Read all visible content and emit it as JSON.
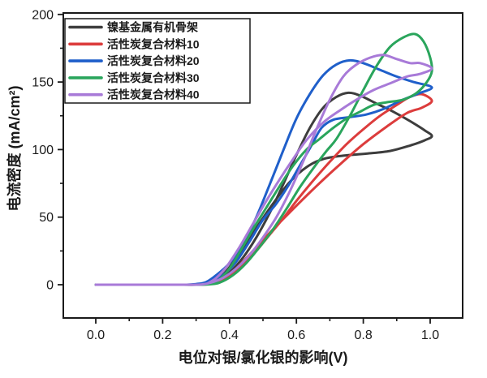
{
  "chart_data": {
    "type": "line",
    "title": "",
    "xlabel": "电位对银/氯化银的影响(V)",
    "ylabel": "电流密度 (mA/cm²)",
    "xlim": [
      -0.1,
      1.1
    ],
    "ylim": [
      -24,
      201
    ],
    "grid": false,
    "legend_position": "top-left",
    "x_ticks": [
      0.0,
      0.2,
      0.4,
      0.6,
      0.8,
      1.0
    ],
    "x_tick_labels": [
      "0.0",
      "0.2",
      "0.4",
      "0.6",
      "0.8",
      "1.0"
    ],
    "x_minor_ticks": [
      0.1,
      0.3,
      0.5,
      0.7,
      0.9
    ],
    "y_ticks": [
      0,
      50,
      100,
      150,
      200
    ],
    "y_tick_labels": [
      "0",
      "50",
      "100",
      "150",
      "200"
    ],
    "y_minor_ticks": [
      25,
      75,
      125,
      175
    ],
    "axis_color": "#1a1a1a",
    "series": [
      {
        "name": "镍基金属有机骨架",
        "color": "#3d3d3d",
        "peak": {
          "x": 0.755,
          "y": 142
        },
        "points": [
          [
            0.0,
            0
          ],
          [
            0.08,
            0
          ],
          [
            0.16,
            0
          ],
          [
            0.24,
            0
          ],
          [
            0.3,
            0
          ],
          [
            0.33,
            0.6
          ],
          [
            0.36,
            2.5
          ],
          [
            0.4,
            9
          ],
          [
            0.44,
            20
          ],
          [
            0.48,
            35
          ],
          [
            0.52,
            53
          ],
          [
            0.56,
            74
          ],
          [
            0.6,
            96
          ],
          [
            0.64,
            116
          ],
          [
            0.68,
            131
          ],
          [
            0.72,
            139
          ],
          [
            0.755,
            142
          ],
          [
            0.79,
            140
          ],
          [
            0.84,
            134
          ],
          [
            0.89,
            128
          ],
          [
            0.94,
            121
          ],
          [
            0.985,
            114
          ],
          [
            1.005,
            110
          ],
          [
            0.985,
            107
          ],
          [
            0.94,
            103
          ],
          [
            0.88,
            99
          ],
          [
            0.81,
            97
          ],
          [
            0.74,
            95.5
          ],
          [
            0.68,
            93
          ],
          [
            0.63,
            87
          ],
          [
            0.58,
            76
          ],
          [
            0.53,
            60
          ],
          [
            0.48,
            42
          ],
          [
            0.44,
            27
          ],
          [
            0.4,
            13
          ],
          [
            0.37,
            5
          ],
          [
            0.345,
            1
          ]
        ]
      },
      {
        "name": "活性炭复合材料10",
        "color": "#dc3c3c",
        "peak": {
          "x": 0.975,
          "y": 141
        },
        "points": [
          [
            0.0,
            0
          ],
          [
            0.1,
            0
          ],
          [
            0.2,
            0
          ],
          [
            0.28,
            0
          ],
          [
            0.32,
            0.2
          ],
          [
            0.36,
            1.5
          ],
          [
            0.4,
            7
          ],
          [
            0.44,
            15
          ],
          [
            0.48,
            25
          ],
          [
            0.52,
            37
          ],
          [
            0.56,
            49
          ],
          [
            0.6,
            62
          ],
          [
            0.65,
            77
          ],
          [
            0.7,
            91
          ],
          [
            0.75,
            104
          ],
          [
            0.8,
            115
          ],
          [
            0.85,
            125
          ],
          [
            0.9,
            133
          ],
          [
            0.94,
            139
          ],
          [
            0.975,
            141
          ],
          [
            1.005,
            136
          ],
          [
            0.975,
            131
          ],
          [
            0.93,
            127
          ],
          [
            0.87,
            117
          ],
          [
            0.8,
            104
          ],
          [
            0.73,
            89
          ],
          [
            0.66,
            73
          ],
          [
            0.59,
            56
          ],
          [
            0.53,
            41
          ],
          [
            0.47,
            25
          ],
          [
            0.42,
            12
          ],
          [
            0.38,
            4
          ],
          [
            0.35,
            0.8
          ]
        ]
      },
      {
        "name": "活性炭复合材料20",
        "color": "#1f5fca",
        "peak": {
          "x": 0.76,
          "y": 166
        },
        "points": [
          [
            0.0,
            0
          ],
          [
            0.1,
            0
          ],
          [
            0.2,
            0
          ],
          [
            0.26,
            0
          ],
          [
            0.3,
            0.5
          ],
          [
            0.33,
            2
          ],
          [
            0.36,
            7
          ],
          [
            0.4,
            16
          ],
          [
            0.44,
            30
          ],
          [
            0.48,
            50
          ],
          [
            0.52,
            74
          ],
          [
            0.56,
            99
          ],
          [
            0.6,
            123
          ],
          [
            0.64,
            141
          ],
          [
            0.68,
            155
          ],
          [
            0.72,
            163
          ],
          [
            0.76,
            166
          ],
          [
            0.8,
            164
          ],
          [
            0.85,
            159
          ],
          [
            0.9,
            154
          ],
          [
            0.95,
            150
          ],
          [
            1.005,
            146
          ],
          [
            0.96,
            141
          ],
          [
            0.91,
            136
          ],
          [
            0.86,
            130
          ],
          [
            0.81,
            126
          ],
          [
            0.76,
            124
          ],
          [
            0.71,
            122
          ],
          [
            0.675,
            116
          ],
          [
            0.645,
            103
          ],
          [
            0.61,
            88
          ],
          [
            0.575,
            73
          ],
          [
            0.54,
            60
          ],
          [
            0.5,
            48
          ],
          [
            0.46,
            32
          ],
          [
            0.42,
            17
          ],
          [
            0.38,
            7
          ],
          [
            0.34,
            1.5
          ]
        ]
      },
      {
        "name": "活性炭复合材料30",
        "color": "#2aa55c",
        "peak": {
          "x": 0.955,
          "y": 185.5
        },
        "points": [
          [
            0.0,
            0
          ],
          [
            0.1,
            0
          ],
          [
            0.2,
            0
          ],
          [
            0.3,
            0
          ],
          [
            0.34,
            0.3
          ],
          [
            0.37,
            1.5
          ],
          [
            0.41,
            7
          ],
          [
            0.45,
            16
          ],
          [
            0.49,
            28
          ],
          [
            0.53,
            41
          ],
          [
            0.57,
            56
          ],
          [
            0.61,
            72
          ],
          [
            0.65,
            86
          ],
          [
            0.69,
            99
          ],
          [
            0.72,
            108
          ],
          [
            0.76,
            125
          ],
          [
            0.8,
            144
          ],
          [
            0.84,
            162
          ],
          [
            0.88,
            176
          ],
          [
            0.92,
            183
          ],
          [
            0.955,
            185.5
          ],
          [
            0.98,
            180
          ],
          [
            1.0,
            168
          ],
          [
            1.005,
            158
          ],
          [
            0.99,
            150
          ],
          [
            0.96,
            142
          ],
          [
            0.92,
            137
          ],
          [
            0.87,
            135
          ],
          [
            0.83,
            133
          ],
          [
            0.79,
            128
          ],
          [
            0.75,
            123
          ],
          [
            0.71,
            116
          ],
          [
            0.67,
            108
          ],
          [
            0.63,
            100
          ],
          [
            0.59,
            88
          ],
          [
            0.55,
            73
          ],
          [
            0.51,
            57
          ],
          [
            0.47,
            41
          ],
          [
            0.43,
            24
          ],
          [
            0.4,
            12
          ],
          [
            0.37,
            4
          ],
          [
            0.35,
            1
          ]
        ]
      },
      {
        "name": "活性炭复合材料40",
        "color": "#a87ad8",
        "peak": {
          "x": 0.86,
          "y": 170
        },
        "points": [
          [
            0.0,
            0
          ],
          [
            0.1,
            0
          ],
          [
            0.2,
            0
          ],
          [
            0.28,
            0
          ],
          [
            0.32,
            0.3
          ],
          [
            0.35,
            2
          ],
          [
            0.38,
            5
          ],
          [
            0.42,
            12
          ],
          [
            0.46,
            22
          ],
          [
            0.5,
            35
          ],
          [
            0.54,
            50
          ],
          [
            0.58,
            69
          ],
          [
            0.62,
            91
          ],
          [
            0.66,
            115
          ],
          [
            0.7,
            137
          ],
          [
            0.74,
            154
          ],
          [
            0.78,
            163
          ],
          [
            0.82,
            168
          ],
          [
            0.86,
            170
          ],
          [
            0.9,
            167
          ],
          [
            0.94,
            164
          ],
          [
            0.97,
            164
          ],
          [
            1.005,
            160
          ],
          [
            0.97,
            156
          ],
          [
            0.93,
            154
          ],
          [
            0.88,
            149
          ],
          [
            0.83,
            144
          ],
          [
            0.78,
            137
          ],
          [
            0.73,
            129
          ],
          [
            0.68,
            120
          ],
          [
            0.63,
            107
          ],
          [
            0.59,
            93
          ],
          [
            0.55,
            78
          ],
          [
            0.51,
            62
          ],
          [
            0.47,
            45
          ],
          [
            0.43,
            28
          ],
          [
            0.39,
            13
          ],
          [
            0.36,
            5
          ],
          [
            0.335,
            1
          ]
        ]
      }
    ]
  }
}
